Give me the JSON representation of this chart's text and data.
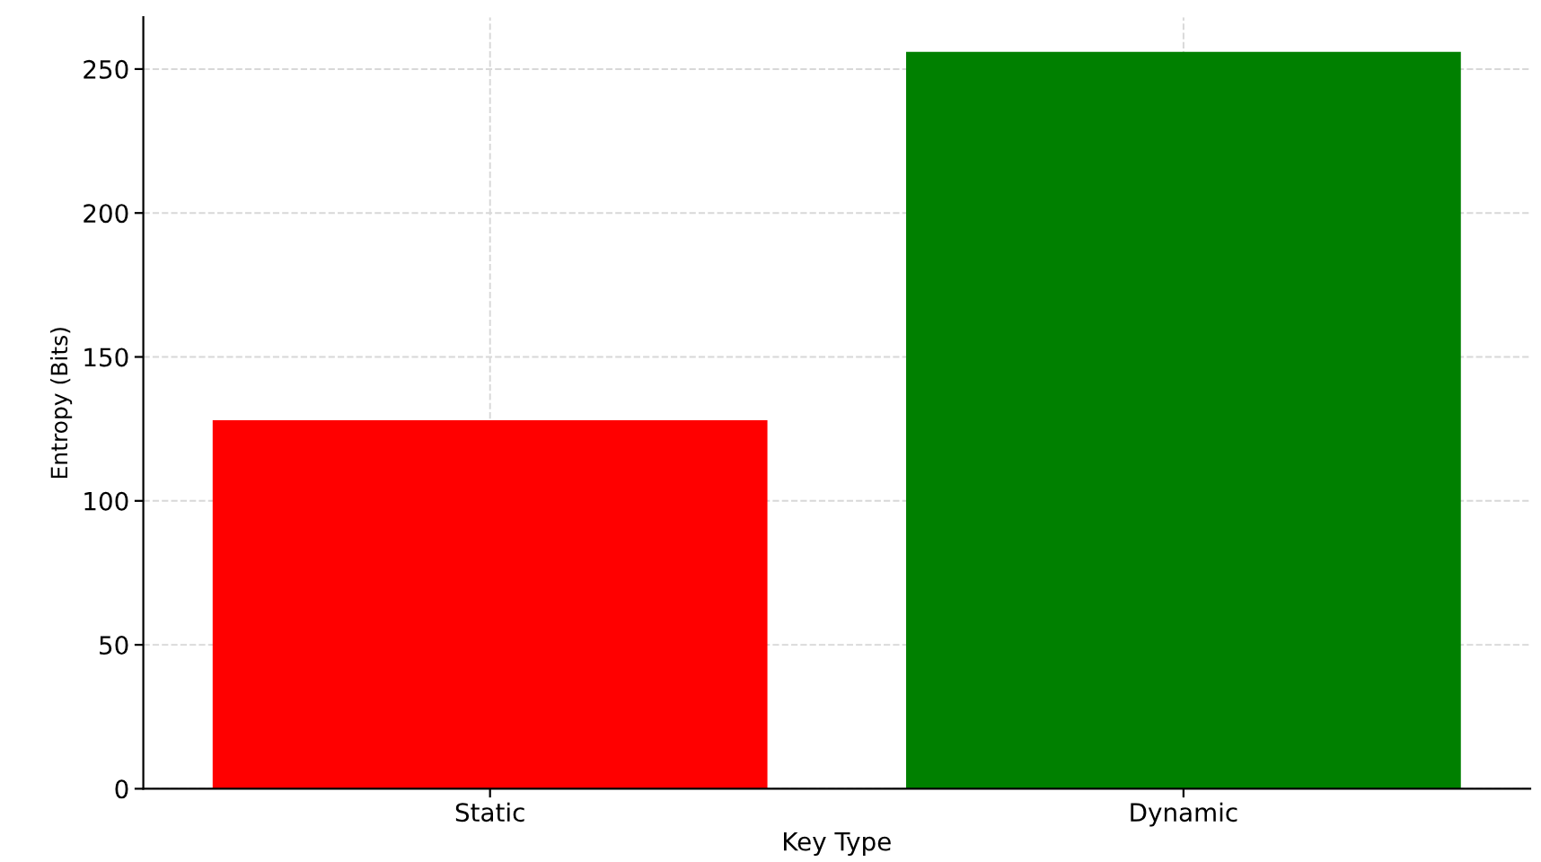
{
  "chart_data": {
    "type": "bar",
    "xlabel": "Key Type",
    "ylabel": "Entropy (Bits)",
    "categories": [
      "Static",
      "Dynamic"
    ],
    "values": [
      128,
      256
    ],
    "colors": [
      "#ff0000",
      "#008000"
    ],
    "ylim": [
      0,
      268
    ],
    "yticks": [
      0,
      50,
      100,
      150,
      200,
      250
    ],
    "grid": true,
    "legend": false
  }
}
